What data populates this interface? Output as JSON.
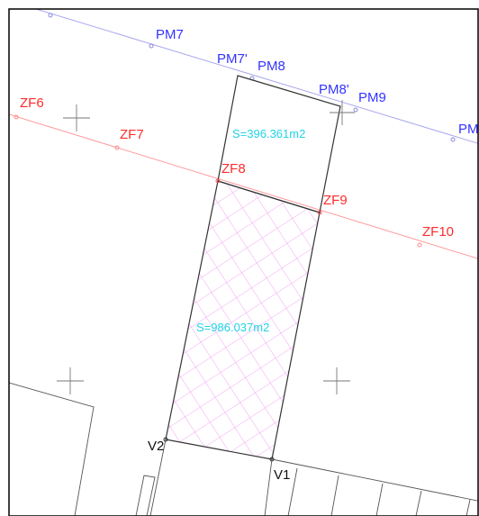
{
  "colors": {
    "polemarks": "#3333ff",
    "zonefront": "#ff2b2b",
    "boundary": "#333333",
    "area_text": "#22d3e6",
    "hatch": "#f08cf0",
    "frame": "#000000"
  },
  "labels": {
    "pm7": "PM7",
    "pm7p": "PM7'",
    "pm8": "PM8",
    "pm8p": "PM8'",
    "pm9": "PM9",
    "pm_cut": "PM",
    "zf6": "ZF6",
    "zf7": "ZF7",
    "zf8": "ZF8",
    "zf9": "ZF9",
    "zf10": "ZF10",
    "v1": "V1",
    "v2": "V2",
    "area_upper": "S=396.361m2",
    "area_lower": "S=986.037m2"
  }
}
